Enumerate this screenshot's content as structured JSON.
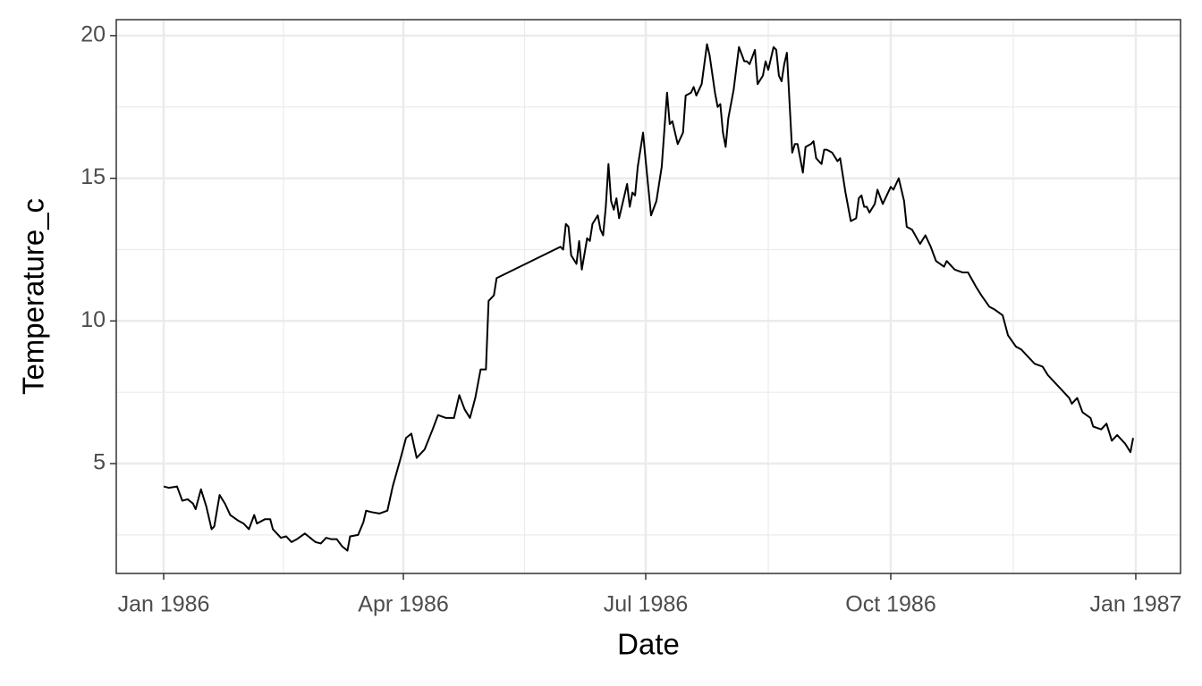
{
  "chart_data": {
    "type": "line",
    "xlabel": "Date",
    "ylabel": "Temperature_c",
    "color": "#000000",
    "grid": true,
    "x": [
      0,
      2,
      5,
      7,
      9,
      11,
      12,
      14,
      16,
      18,
      19,
      21,
      23,
      25,
      28,
      30,
      32,
      34,
      35,
      38,
      40,
      41,
      44,
      46,
      48,
      50,
      53,
      55,
      57,
      59,
      61,
      63,
      65,
      67,
      69,
      70,
      73,
      75,
      76,
      78,
      81,
      84,
      86,
      89,
      91,
      93,
      95,
      98,
      101,
      103,
      106,
      109,
      111,
      113,
      115,
      117,
      119,
      121,
      122,
      124,
      125,
      149,
      150,
      151,
      152,
      153,
      155,
      156,
      157,
      159,
      160,
      161,
      163,
      164,
      165,
      166,
      167,
      168,
      169,
      170,
      171,
      173,
      174,
      175,
      176,
      177,
      178,
      180,
      181,
      183,
      185,
      186,
      187,
      189,
      190,
      191,
      193,
      195,
      196,
      198,
      199,
      200,
      202,
      204,
      205,
      207,
      208,
      209,
      210,
      211,
      212,
      214,
      216,
      218,
      219,
      220,
      222,
      223,
      225,
      226,
      227,
      229,
      230,
      231,
      232,
      233,
      234,
      236,
      237,
      238,
      240,
      241,
      243,
      244,
      245,
      247,
      248,
      249,
      251,
      253,
      254,
      256,
      258,
      260,
      261,
      262,
      263,
      264,
      265,
      267,
      268,
      270,
      271,
      273,
      274,
      276,
      278,
      279,
      281,
      284,
      286,
      288,
      290,
      293,
      294,
      297,
      300,
      302,
      305,
      307,
      310,
      312,
      315,
      317,
      320,
      322,
      325,
      327,
      330,
      332,
      335,
      337,
      340,
      341,
      343,
      345,
      348,
      349,
      352,
      354,
      356,
      358,
      361,
      363,
      364
    ],
    "values": [
      4.2,
      4.15,
      4.2,
      3.7,
      3.75,
      3.6,
      3.4,
      4.1,
      3.5,
      2.7,
      2.8,
      3.9,
      3.6,
      3.2,
      3.0,
      2.9,
      2.7,
      3.2,
      2.9,
      3.05,
      3.05,
      2.7,
      2.4,
      2.45,
      2.25,
      2.35,
      2.55,
      2.4,
      2.25,
      2.2,
      2.4,
      2.35,
      2.35,
      2.1,
      1.95,
      2.45,
      2.5,
      2.95,
      3.35,
      3.3,
      3.25,
      3.35,
      4.2,
      5.2,
      5.9,
      6.05,
      5.2,
      5.5,
      6.2,
      6.7,
      6.6,
      6.6,
      7.4,
      6.9,
      6.6,
      7.3,
      8.3,
      8.3,
      10.7,
      10.9,
      11.5,
      12.6,
      12.5,
      13.4,
      13.3,
      12.3,
      12.0,
      12.8,
      11.8,
      12.9,
      12.8,
      13.4,
      13.7,
      13.2,
      13.0,
      14.0,
      15.5,
      14.2,
      13.9,
      14.3,
      13.6,
      14.4,
      14.8,
      14.0,
      14.5,
      14.4,
      15.4,
      16.6,
      15.6,
      13.7,
      14.2,
      14.8,
      15.4,
      18.0,
      16.9,
      17.0,
      16.2,
      16.6,
      17.9,
      18.0,
      18.2,
      17.9,
      18.3,
      19.7,
      19.3,
      18.0,
      17.5,
      17.6,
      16.6,
      16.1,
      17.1,
      18.1,
      19.6,
      19.1,
      19.1,
      19.0,
      19.5,
      18.3,
      18.6,
      19.1,
      18.8,
      19.6,
      19.5,
      18.6,
      18.4,
      19.0,
      19.4,
      15.9,
      16.2,
      16.2,
      15.2,
      16.1,
      16.2,
      16.3,
      15.7,
      15.5,
      16.0,
      16.0,
      15.9,
      15.6,
      15.7,
      14.5,
      13.5,
      13.6,
      14.3,
      14.4,
      14.0,
      14.0,
      13.8,
      14.1,
      14.6,
      14.1,
      14.3,
      14.7,
      14.6,
      15.0,
      14.2,
      13.3,
      13.2,
      12.7,
      13.0,
      12.6,
      12.1,
      11.9,
      12.1,
      11.8,
      11.7,
      11.7,
      11.2,
      10.9,
      10.5,
      10.4,
      10.2,
      9.5,
      9.1,
      9.0,
      8.7,
      8.5,
      8.4,
      8.1,
      7.8,
      7.6,
      7.3,
      7.1,
      7.3,
      6.8,
      6.6,
      6.3,
      6.2,
      6.4,
      5.8,
      6.0,
      5.7,
      5.4,
      5.9
    ],
    "xlim": [
      -17.8,
      381.8
    ],
    "xticks": [
      {
        "value": 0,
        "label": "Jan 1986"
      },
      {
        "value": 90,
        "label": "Apr 1986"
      },
      {
        "value": 181,
        "label": "Jul 1986"
      },
      {
        "value": 273,
        "label": "Oct 1986"
      },
      {
        "value": 365,
        "label": "Jan 1987"
      }
    ],
    "ylim": [
      1.15,
      20.56
    ],
    "yticks": [
      5,
      10,
      15,
      20
    ]
  }
}
